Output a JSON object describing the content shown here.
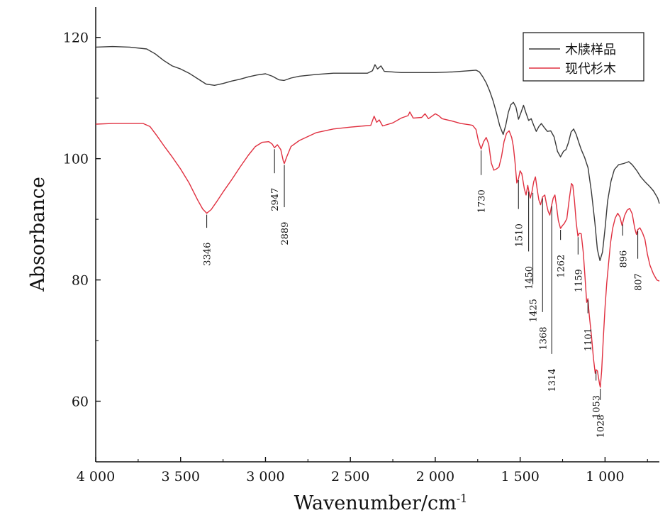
{
  "chart_data": {
    "type": "line",
    "xlabel": "Wavenumber/cm",
    "xlabel_sup": "-1",
    "ylabel": "Absorbance",
    "xlim": [
      4000,
      680
    ],
    "ylim": [
      50,
      125
    ],
    "grid": false,
    "legend_position": "top-right",
    "x_ticks": [
      {
        "value": 4000,
        "label": "4 000"
      },
      {
        "value": 3500,
        "label": "3 500"
      },
      {
        "value": 3000,
        "label": "3 000"
      },
      {
        "value": 2500,
        "label": "2 500"
      },
      {
        "value": 2000,
        "label": "2 000"
      },
      {
        "value": 1500,
        "label": "1 500"
      },
      {
        "value": 1000,
        "label": "1 000"
      }
    ],
    "y_ticks": [
      {
        "value": 60,
        "label": "60"
      },
      {
        "value": 80,
        "label": "80"
      },
      {
        "value": 100,
        "label": "100"
      },
      {
        "value": 120,
        "label": "120"
      }
    ],
    "series": [
      {
        "name": "木牍样品",
        "color": "#3a3a3a",
        "points": [
          [
            4000,
            118.4
          ],
          [
            3900,
            118.5
          ],
          [
            3800,
            118.4
          ],
          [
            3700,
            118.1
          ],
          [
            3650,
            117.3
          ],
          [
            3600,
            116.2
          ],
          [
            3550,
            115.3
          ],
          [
            3500,
            114.8
          ],
          [
            3450,
            114.1
          ],
          [
            3400,
            113.2
          ],
          [
            3350,
            112.3
          ],
          [
            3300,
            112.1
          ],
          [
            3250,
            112.4
          ],
          [
            3200,
            112.8
          ],
          [
            3150,
            113.1
          ],
          [
            3100,
            113.5
          ],
          [
            3050,
            113.8
          ],
          [
            3000,
            114.0
          ],
          [
            2960,
            113.6
          ],
          [
            2920,
            113.0
          ],
          [
            2890,
            112.9
          ],
          [
            2850,
            113.3
          ],
          [
            2800,
            113.6
          ],
          [
            2700,
            113.9
          ],
          [
            2600,
            114.1
          ],
          [
            2500,
            114.1
          ],
          [
            2400,
            114.1
          ],
          [
            2370,
            114.5
          ],
          [
            2355,
            115.5
          ],
          [
            2340,
            114.8
          ],
          [
            2320,
            115.3
          ],
          [
            2300,
            114.4
          ],
          [
            2200,
            114.2
          ],
          [
            2100,
            114.2
          ],
          [
            2000,
            114.2
          ],
          [
            1900,
            114.3
          ],
          [
            1800,
            114.5
          ],
          [
            1760,
            114.6
          ],
          [
            1740,
            114.3
          ],
          [
            1720,
            113.5
          ],
          [
            1700,
            112.5
          ],
          [
            1680,
            111.2
          ],
          [
            1660,
            109.6
          ],
          [
            1640,
            107.6
          ],
          [
            1620,
            105.4
          ],
          [
            1600,
            104.0
          ],
          [
            1585,
            105.5
          ],
          [
            1570,
            107.6
          ],
          [
            1555,
            108.9
          ],
          [
            1540,
            109.3
          ],
          [
            1525,
            108.5
          ],
          [
            1510,
            106.5
          ],
          [
            1495,
            107.6
          ],
          [
            1480,
            108.8
          ],
          [
            1465,
            107.5
          ],
          [
            1450,
            106.3
          ],
          [
            1435,
            106.6
          ],
          [
            1420,
            105.5
          ],
          [
            1405,
            104.5
          ],
          [
            1390,
            105.3
          ],
          [
            1375,
            105.8
          ],
          [
            1360,
            105.2
          ],
          [
            1340,
            104.5
          ],
          [
            1320,
            104.6
          ],
          [
            1300,
            103.6
          ],
          [
            1280,
            101.2
          ],
          [
            1262,
            100.3
          ],
          [
            1245,
            101.2
          ],
          [
            1230,
            101.5
          ],
          [
            1215,
            102.7
          ],
          [
            1200,
            104.4
          ],
          [
            1185,
            104.9
          ],
          [
            1170,
            104.0
          ],
          [
            1155,
            102.7
          ],
          [
            1140,
            101.5
          ],
          [
            1120,
            100.2
          ],
          [
            1100,
            98.5
          ],
          [
            1080,
            94.5
          ],
          [
            1060,
            89.5
          ],
          [
            1045,
            85.0
          ],
          [
            1030,
            83.2
          ],
          [
            1015,
            84.6
          ],
          [
            1000,
            88.5
          ],
          [
            985,
            93.0
          ],
          [
            965,
            96.3
          ],
          [
            945,
            98.2
          ],
          [
            920,
            99.0
          ],
          [
            890,
            99.2
          ],
          [
            860,
            99.5
          ],
          [
            840,
            99.0
          ],
          [
            815,
            98.1
          ],
          [
            790,
            97.0
          ],
          [
            765,
            96.2
          ],
          [
            740,
            95.5
          ],
          [
            715,
            94.7
          ],
          [
            690,
            93.5
          ],
          [
            680,
            92.6
          ]
        ]
      },
      {
        "name": "现代杉木",
        "color": "#e03040",
        "points": [
          [
            4000,
            105.7
          ],
          [
            3900,
            105.8
          ],
          [
            3800,
            105.8
          ],
          [
            3720,
            105.8
          ],
          [
            3680,
            105.3
          ],
          [
            3640,
            103.8
          ],
          [
            3600,
            102.2
          ],
          [
            3550,
            100.3
          ],
          [
            3500,
            98.3
          ],
          [
            3450,
            96.0
          ],
          [
            3400,
            93.2
          ],
          [
            3370,
            91.7
          ],
          [
            3346,
            91.0
          ],
          [
            3320,
            91.6
          ],
          [
            3290,
            92.8
          ],
          [
            3250,
            94.5
          ],
          [
            3200,
            96.5
          ],
          [
            3150,
            98.6
          ],
          [
            3100,
            100.6
          ],
          [
            3060,
            102.0
          ],
          [
            3020,
            102.7
          ],
          [
            2980,
            102.8
          ],
          [
            2960,
            102.4
          ],
          [
            2947,
            101.8
          ],
          [
            2930,
            102.3
          ],
          [
            2910,
            101.5
          ],
          [
            2895,
            99.6
          ],
          [
            2889,
            99.2
          ],
          [
            2875,
            100.3
          ],
          [
            2850,
            102.0
          ],
          [
            2800,
            103.0
          ],
          [
            2700,
            104.3
          ],
          [
            2600,
            104.9
          ],
          [
            2500,
            105.2
          ],
          [
            2420,
            105.4
          ],
          [
            2380,
            105.5
          ],
          [
            2360,
            107.0
          ],
          [
            2345,
            106.0
          ],
          [
            2330,
            106.4
          ],
          [
            2310,
            105.4
          ],
          [
            2250,
            105.9
          ],
          [
            2200,
            106.7
          ],
          [
            2160,
            107.1
          ],
          [
            2150,
            107.7
          ],
          [
            2130,
            106.7
          ],
          [
            2080,
            106.8
          ],
          [
            2060,
            107.4
          ],
          [
            2040,
            106.6
          ],
          [
            2000,
            107.4
          ],
          [
            1980,
            107.1
          ],
          [
            1960,
            106.6
          ],
          [
            1900,
            106.2
          ],
          [
            1850,
            105.8
          ],
          [
            1800,
            105.6
          ],
          [
            1780,
            105.5
          ],
          [
            1760,
            104.8
          ],
          [
            1745,
            102.8
          ],
          [
            1730,
            101.6
          ],
          [
            1715,
            102.8
          ],
          [
            1700,
            103.5
          ],
          [
            1685,
            102.4
          ],
          [
            1670,
            99.3
          ],
          [
            1655,
            98.1
          ],
          [
            1640,
            98.3
          ],
          [
            1625,
            98.6
          ],
          [
            1610,
            100.3
          ],
          [
            1595,
            102.8
          ],
          [
            1580,
            104.2
          ],
          [
            1565,
            104.6
          ],
          [
            1550,
            103.5
          ],
          [
            1540,
            102.0
          ],
          [
            1530,
            99.3
          ],
          [
            1520,
            96.0
          ],
          [
            1510,
            96.7
          ],
          [
            1500,
            98.0
          ],
          [
            1490,
            97.5
          ],
          [
            1475,
            95.0
          ],
          [
            1465,
            94.0
          ],
          [
            1455,
            95.6
          ],
          [
            1450,
            94.8
          ],
          [
            1440,
            93.5
          ],
          [
            1430,
            94.6
          ],
          [
            1420,
            96.2
          ],
          [
            1410,
            97.0
          ],
          [
            1400,
            95.0
          ],
          [
            1390,
            93.2
          ],
          [
            1380,
            92.4
          ],
          [
            1368,
            93.7
          ],
          [
            1355,
            94.0
          ],
          [
            1345,
            92.5
          ],
          [
            1335,
            91.3
          ],
          [
            1325,
            90.7
          ],
          [
            1314,
            92.4
          ],
          [
            1305,
            93.5
          ],
          [
            1295,
            94.0
          ],
          [
            1285,
            92.0
          ],
          [
            1275,
            89.8
          ],
          [
            1262,
            88.5
          ],
          [
            1250,
            89.0
          ],
          [
            1240,
            89.3
          ],
          [
            1225,
            90.1
          ],
          [
            1210,
            93.5
          ],
          [
            1198,
            95.9
          ],
          [
            1190,
            95.6
          ],
          [
            1180,
            93.0
          ],
          [
            1170,
            89.5
          ],
          [
            1160,
            87.2
          ],
          [
            1152,
            87.7
          ],
          [
            1140,
            87.6
          ],
          [
            1128,
            84.5
          ],
          [
            1118,
            80.5
          ],
          [
            1108,
            76.3
          ],
          [
            1101,
            76.9
          ],
          [
            1092,
            74.0
          ],
          [
            1080,
            70.8
          ],
          [
            1068,
            67.0
          ],
          [
            1058,
            64.6
          ],
          [
            1053,
            65.2
          ],
          [
            1045,
            65.0
          ],
          [
            1038,
            63.8
          ],
          [
            1032,
            62.8
          ],
          [
            1028,
            62.3
          ],
          [
            1020,
            65.0
          ],
          [
            1010,
            70.5
          ],
          [
            1000,
            75.5
          ],
          [
            990,
            79.5
          ],
          [
            980,
            82.5
          ],
          [
            968,
            86.0
          ],
          [
            955,
            88.5
          ],
          [
            940,
            90.2
          ],
          [
            925,
            91.0
          ],
          [
            912,
            90.4
          ],
          [
            900,
            89.0
          ],
          [
            896,
            89.4
          ],
          [
            885,
            90.6
          ],
          [
            870,
            91.5
          ],
          [
            855,
            91.8
          ],
          [
            840,
            90.9
          ],
          [
            825,
            88.5
          ],
          [
            815,
            87.5
          ],
          [
            807,
            88.3
          ],
          [
            795,
            88.6
          ],
          [
            780,
            87.8
          ],
          [
            765,
            86.7
          ],
          [
            750,
            84.2
          ],
          [
            735,
            82.4
          ],
          [
            715,
            81.0
          ],
          [
            695,
            80.0
          ],
          [
            680,
            79.8
          ]
        ]
      }
    ],
    "annotations": [
      {
        "label": "3346",
        "x": 3346,
        "y_from": 91.0,
        "y_to": 88.6,
        "label_y": 86.2
      },
      {
        "label": "2947",
        "x": 2947,
        "y_from": 101.8,
        "y_to": 97.6,
        "label_y": 95.2
      },
      {
        "label": "2889",
        "x": 2889,
        "y_from": 99.2,
        "y_to": 92.0,
        "label_y": 89.6
      },
      {
        "label": "1730",
        "x": 1730,
        "y_from": 101.6,
        "y_to": 97.3,
        "label_y": 94.9
      },
      {
        "label": "1510",
        "x": 1510,
        "y_from": 96.7,
        "y_to": 91.7,
        "label_y": 89.3
      },
      {
        "label": "1450",
        "x": 1450,
        "y_from": 94.8,
        "y_to": 84.7,
        "label_y": 82.3
      },
      {
        "label": "1425",
        "x": 1425,
        "y_from": 94.6,
        "y_to": 79.3,
        "label_y": 76.9
      },
      {
        "label": "1368",
        "x": 1368,
        "y_from": 93.7,
        "y_to": 74.7,
        "label_y": 72.3
      },
      {
        "label": "1314",
        "x": 1314,
        "y_from": 92.4,
        "y_to": 67.8,
        "label_y": 65.4
      },
      {
        "label": "1262",
        "x": 1262,
        "y_from": 88.5,
        "y_to": 86.6,
        "label_y": 84.2
      },
      {
        "label": "1159",
        "x": 1159,
        "y_from": 87.3,
        "y_to": 84.2,
        "label_y": 81.8
      },
      {
        "label": "1101",
        "x": 1101,
        "y_from": 76.9,
        "y_to": 74.5,
        "label_y": 72.1
      },
      {
        "label": "1053",
        "x": 1053,
        "y_from": 65.2,
        "y_to": 63.4,
        "label_y": 61.0
      },
      {
        "label": "1028",
        "x": 1028,
        "y_from": 62.3,
        "y_to": 60.2,
        "label_y": 57.8
      },
      {
        "label": "896",
        "x": 896,
        "y_from": 89.4,
        "y_to": 87.3,
        "label_y": 84.9
      },
      {
        "label": "807",
        "x": 807,
        "y_from": 88.3,
        "y_to": 83.5,
        "label_y": 81.1
      }
    ]
  }
}
